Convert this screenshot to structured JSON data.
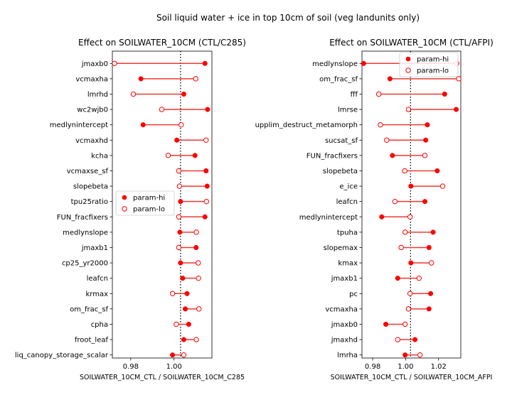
{
  "figure": {
    "suptitle": "Soil liquid water + ice in top 10cm of soil (veg landunits only)"
  },
  "chart_data": [
    {
      "type": "dot",
      "title": "Effect on SOILWATER_10CM (CTL/C285)",
      "xlabel": "SOILWATER_10CM_CTL / SOILWATER_10CM_C285",
      "xlim": [
        0.9715,
        1.0175
      ],
      "xticks": [
        0.98,
        1.0
      ],
      "xtick_labels": [
        "0.98",
        "1.00"
      ],
      "reference_line": 1.003,
      "legend": {
        "placement": "center-left",
        "entries": [
          "param-hi",
          "param-lo"
        ]
      },
      "categories": [
        "jmaxb0",
        "vcmaxha",
        "lmrhd",
        "wc2wjb0",
        "medlynintercept",
        "vcmaxhd",
        "kcha",
        "vcmaxse_sf",
        "slopebeta",
        "tpu25ratio",
        "FUN_fracfixers",
        "medlynslope",
        "jmaxb1",
        "cp25_yr2000",
        "leafcn",
        "krmax",
        "om_frac_sf",
        "cpha",
        "froot_leaf",
        "liq_canopy_storage_scalar"
      ],
      "series": [
        {
          "name": "param-hi",
          "values": [
            1.0143,
            0.9847,
            1.0045,
            1.0155,
            0.9857,
            1.0013,
            1.0097,
            1.0148,
            1.0153,
            1.003,
            1.0143,
            1.0027,
            1.0102,
            1.003,
            1.004,
            1.006,
            1.0052,
            1.0068,
            1.0045,
            0.9993
          ]
        },
        {
          "name": "param-lo",
          "values": [
            0.9725,
            1.01,
            0.9812,
            0.9943,
            1.0033,
            1.0148,
            0.9973,
            1.0022,
            1.0025,
            1.015,
            1.0022,
            1.0103,
            1.0022,
            1.0112,
            1.0113,
            0.9993,
            1.0115,
            1.001,
            1.0103,
            1.0045
          ]
        }
      ]
    },
    {
      "type": "dot",
      "title": "Effect on SOILWATER_10CM (CTL/AFPI)",
      "xlabel": "SOILWATER_10CM_CTL / SOILWATER_10CM_AFPI",
      "xlim": [
        0.9735,
        1.0335
      ],
      "xticks": [
        0.98,
        1.0,
        1.02
      ],
      "xtick_labels": [
        "0.98",
        "1.00",
        "1.02"
      ],
      "reference_line": 1.003,
      "legend": {
        "placement": "upper-right",
        "entries": [
          "param-hi",
          "param-lo"
        ]
      },
      "categories": [
        "medlynslope",
        "om_frac_sf",
        "fff",
        "lmrse",
        "upplim_destruct_metamorph",
        "sucsat_sf",
        "FUN_fracfixers",
        "slopebeta",
        "e_ice",
        "leafcn",
        "medlynintercept",
        "tpuha",
        "slopemax",
        "kmax",
        "jmaxb1",
        "pc",
        "vcmaxha",
        "jmaxb0",
        "jmaxhd",
        "lmrha"
      ],
      "series": [
        {
          "name": "param-hi",
          "values": [
            0.9745,
            0.9905,
            1.0237,
            1.0307,
            1.0132,
            1.0122,
            0.992,
            1.0192,
            1.0032,
            1.0117,
            0.9855,
            1.0167,
            1.0142,
            1.0032,
            0.9952,
            1.0152,
            1.0142,
            0.988,
            1.0057,
            0.9997
          ]
        },
        {
          "name": "param-lo",
          "values": [
            1.031,
            1.0322,
            0.9837,
            1.0017,
            0.9847,
            0.9885,
            1.0117,
            0.9995,
            1.0225,
            0.9935,
            1.0027,
            0.9997,
            0.9973,
            1.0157,
            1.0082,
            1.0027,
            1.0017,
            0.9997,
            0.9952,
            1.0087
          ]
        }
      ]
    }
  ]
}
